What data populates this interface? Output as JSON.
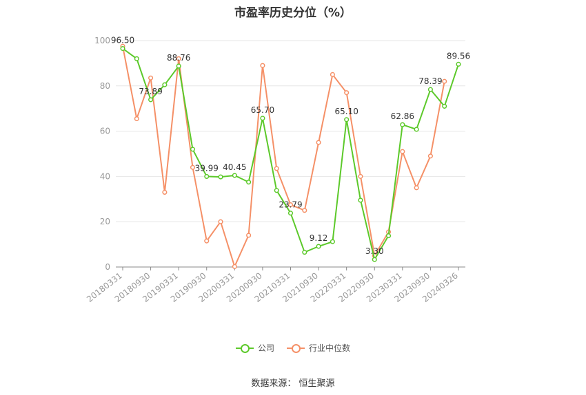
{
  "title": "市盈率历史分位（%）",
  "source": "数据来源：   恒生聚源",
  "colors": {
    "company": "#5cc92a",
    "industry": "#f59067",
    "grid": "#e6e6e6",
    "axis": "#999999"
  },
  "legend": {
    "company": "公司",
    "industry": "行业中位数"
  },
  "chart_data": {
    "type": "line",
    "title": "市盈率历史分位（%）",
    "ylim": [
      0,
      100
    ],
    "y_ticks": [
      0,
      20,
      40,
      60,
      80,
      100
    ],
    "x_tick_labels": [
      "20180331",
      "20180930",
      "20190331",
      "20190930",
      "20200331",
      "20200930",
      "20210331",
      "20210930",
      "20220331",
      "20220930",
      "20230331",
      "20230930",
      "20240326"
    ],
    "x": [
      "20180331",
      "20180630",
      "20180930",
      "20181231",
      "20190331",
      "20190630",
      "20190930",
      "20191231",
      "20200331",
      "20200630",
      "20200930",
      "20201231",
      "20210331",
      "20210630",
      "20210930",
      "20211231",
      "20220331",
      "20220630",
      "20220930",
      "20221231",
      "20230331",
      "20230630",
      "20230930",
      "20231231",
      "20240326"
    ],
    "grid": true,
    "legend_position": "bottom",
    "series": [
      {
        "name": "公司",
        "values": [
          96.5,
          92.0,
          73.89,
          80.5,
          88.76,
          52.0,
          39.99,
          39.8,
          40.45,
          37.5,
          65.7,
          33.8,
          23.79,
          6.5,
          9.12,
          11.2,
          65.1,
          29.5,
          3.3,
          13.8,
          62.86,
          60.8,
          78.39,
          71.0,
          89.56
        ]
      },
      {
        "name": "行业中位数",
        "values": [
          97.5,
          65.5,
          83.5,
          33.0,
          92.0,
          44.0,
          11.5,
          20.0,
          0.2,
          14.0,
          89.0,
          43.5,
          27.5,
          25.0,
          55.0,
          85.0,
          77.0,
          40.0,
          5.0,
          15.5,
          51.0,
          35.0,
          49.0,
          82.0,
          null
        ]
      }
    ],
    "point_labels": [
      {
        "index": 0,
        "text": "96.50"
      },
      {
        "index": 2,
        "text": "73.89"
      },
      {
        "index": 4,
        "text": "88.76"
      },
      {
        "index": 6,
        "text": "39.99"
      },
      {
        "index": 8,
        "text": "40.45"
      },
      {
        "index": 10,
        "text": "65.70"
      },
      {
        "index": 12,
        "text": "23.79"
      },
      {
        "index": 14,
        "text": "9.12"
      },
      {
        "index": 16,
        "text": "65.10"
      },
      {
        "index": 18,
        "text": "3.30"
      },
      {
        "index": 20,
        "text": "62.86"
      },
      {
        "index": 22,
        "text": "78.39"
      },
      {
        "index": 24,
        "text": "89.56"
      }
    ]
  }
}
